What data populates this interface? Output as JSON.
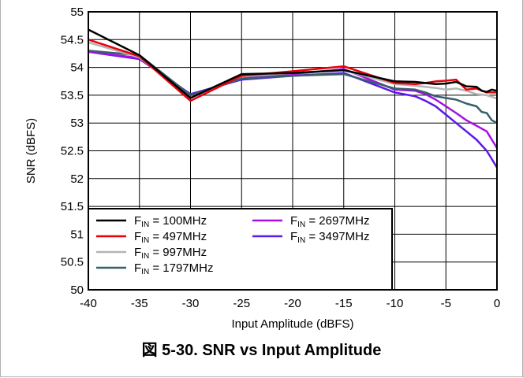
{
  "caption": "図 5-30. SNR vs Input Amplitude",
  "chart_data": {
    "type": "line",
    "xlabel": "Input Amplitude (dBFS)",
    "ylabel": "SNR (dBFS)",
    "xlim": [
      -40,
      0
    ],
    "ylim": [
      50,
      55
    ],
    "xticks": [
      "-40",
      "-35",
      "-30",
      "-25",
      "-20",
      "-15",
      "-10",
      "-5",
      "0"
    ],
    "yticks": [
      "50",
      "50.5",
      "51",
      "51.5",
      "52",
      "52.5",
      "53",
      "53.5",
      "54",
      "54.5",
      "55"
    ],
    "grid": true,
    "legend_position": "bottom-left",
    "series": [
      {
        "name": "100MHz",
        "legend_prefix": "F",
        "legend_sub": "IN",
        "legend_mid": " = ",
        "color": "#000000",
        "x": [
          -40,
          -35,
          -30,
          -25,
          -20,
          -15,
          -10,
          -8,
          -7,
          -6,
          -5,
          -4,
          -3,
          -2,
          -1.5,
          -1,
          -0.5,
          0
        ],
        "y": [
          54.68,
          54.22,
          53.45,
          53.88,
          53.9,
          53.95,
          53.75,
          53.74,
          53.72,
          53.7,
          53.71,
          53.74,
          53.66,
          53.65,
          53.58,
          53.56,
          53.6,
          53.58
        ]
      },
      {
        "name": "497MHz",
        "legend_prefix": "F",
        "legend_sub": "IN",
        "legend_mid": " = ",
        "color": "#e8000b",
        "x": [
          -40,
          -35,
          -30,
          -25,
          -20,
          -15,
          -10,
          -8,
          -7,
          -6,
          -5,
          -4,
          -3,
          -2,
          -1,
          -0.5,
          0
        ],
        "y": [
          54.5,
          54.2,
          53.4,
          53.85,
          53.93,
          54.02,
          53.72,
          53.7,
          53.72,
          53.75,
          53.76,
          53.78,
          53.6,
          53.62,
          53.55,
          53.55,
          53.55
        ]
      },
      {
        "name": "997MHz",
        "legend_prefix": "F",
        "legend_sub": "IN",
        "legend_mid": " = ",
        "color": "#b5b5b5",
        "x": [
          -40,
          -35,
          -30,
          -25,
          -20,
          -15,
          -10,
          -8,
          -7,
          -6,
          -5,
          -4,
          -3,
          -2,
          -1,
          -0.5,
          0
        ],
        "y": [
          54.45,
          54.18,
          53.45,
          53.84,
          53.9,
          53.95,
          53.7,
          53.67,
          53.65,
          53.63,
          53.6,
          53.62,
          53.58,
          53.52,
          53.5,
          53.47,
          53.44
        ]
      },
      {
        "name": "1797MHz",
        "legend_prefix": "F",
        "legend_sub": "IN",
        "legend_mid": " = ",
        "color": "#35606c",
        "x": [
          -40,
          -35,
          -30,
          -25,
          -20,
          -15,
          -10,
          -8,
          -7,
          -6,
          -5,
          -4,
          -3,
          -2,
          -1.5,
          -1,
          -0.5,
          0
        ],
        "y": [
          54.3,
          54.22,
          53.5,
          53.8,
          53.85,
          53.88,
          53.62,
          53.6,
          53.55,
          53.48,
          53.45,
          53.42,
          53.35,
          53.3,
          53.2,
          53.18,
          53.05,
          53.0
        ]
      },
      {
        "name": "2697MHz",
        "legend_prefix": "F",
        "legend_sub": "IN",
        "legend_mid": " = ",
        "color": "#a80ee6",
        "x": [
          -40,
          -35,
          -30,
          -25,
          -20,
          -15,
          -10,
          -8,
          -7,
          -6,
          -5,
          -4,
          -3,
          -2,
          -1,
          -0.5,
          0
        ],
        "y": [
          54.28,
          54.17,
          53.5,
          53.8,
          53.88,
          53.97,
          53.6,
          53.58,
          53.52,
          53.42,
          53.3,
          53.18,
          53.05,
          52.95,
          52.85,
          52.7,
          52.55
        ]
      },
      {
        "name": "3497MHz",
        "legend_prefix": "F",
        "legend_sub": "IN",
        "legend_mid": " = ",
        "color": "#5a1ae8",
        "x": [
          -40,
          -35,
          -30,
          -25,
          -20,
          -15,
          -10,
          -8,
          -7,
          -6,
          -5,
          -4,
          -3,
          -2,
          -1,
          -0.5,
          0
        ],
        "y": [
          54.28,
          54.15,
          53.52,
          53.78,
          53.85,
          53.9,
          53.55,
          53.48,
          53.4,
          53.3,
          53.15,
          53.0,
          52.85,
          52.7,
          52.5,
          52.35,
          52.2
        ]
      }
    ]
  }
}
